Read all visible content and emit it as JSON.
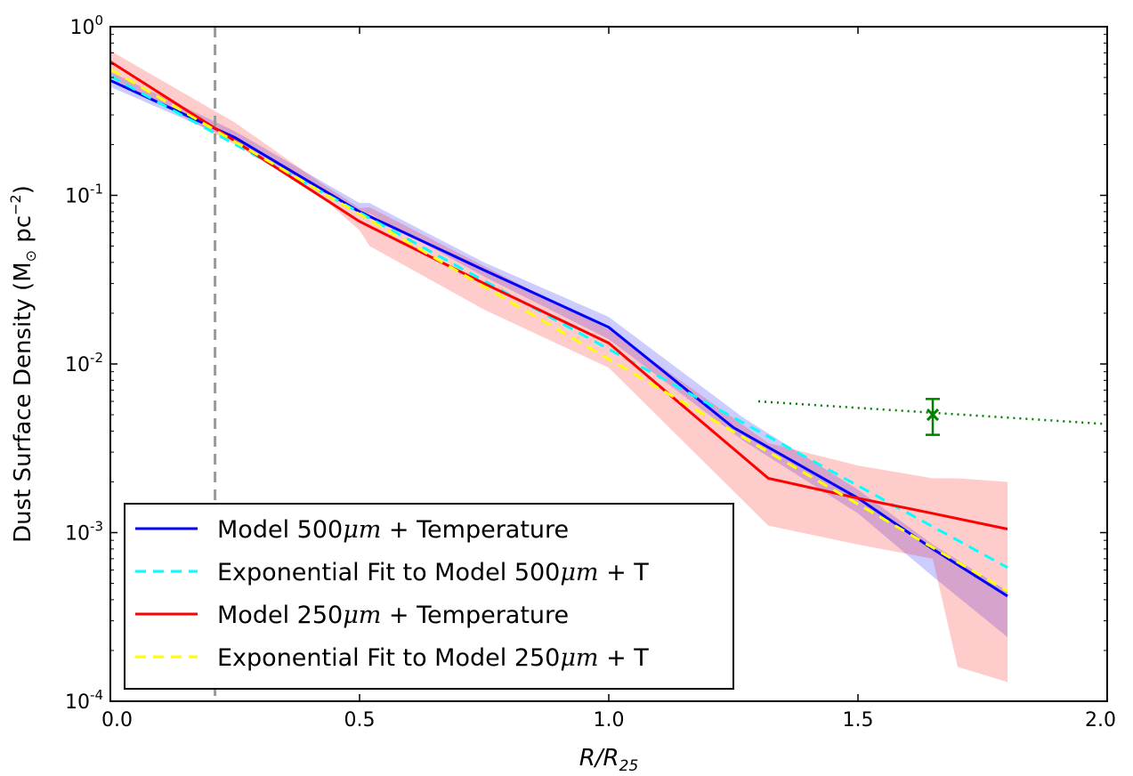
{
  "chart_data": {
    "type": "line",
    "title": "",
    "xlabel": "R/R",
    "xlabel_sub": "25",
    "ylabel": "Dust Surface Density (M",
    "ylabel_sun": "⊙",
    "ylabel_unit": " pc",
    "ylabel_exp": "−2",
    "ylabel_close": ")",
    "xlim": [
      0.0,
      2.0
    ],
    "ylim": [
      0.0001,
      1.0
    ],
    "yscale": "log",
    "grid": false,
    "legend_position": "lower-left",
    "x_ticks": [
      {
        "value": 0.0,
        "label": "0.0"
      },
      {
        "value": 0.5,
        "label": "0.5"
      },
      {
        "value": 1.0,
        "label": "1.0"
      },
      {
        "value": 1.5,
        "label": "1.5"
      },
      {
        "value": 2.0,
        "label": "2.0"
      }
    ],
    "y_ticks": [
      {
        "value": 1.0,
        "base": "10",
        "exp": "0"
      },
      {
        "value": 0.1,
        "base": "10",
        "exp": "-1"
      },
      {
        "value": 0.01,
        "base": "10",
        "exp": "-2"
      },
      {
        "value": 0.001,
        "base": "10",
        "exp": "-3"
      },
      {
        "value": 0.0001,
        "base": "10",
        "exp": "-4"
      }
    ],
    "reference_line": {
      "x": 0.21,
      "color": "#999999",
      "style": "dashed"
    },
    "bands": [
      {
        "series": "Model 500μm + Temperature",
        "color": "#0000ff",
        "opacity": 0.2,
        "x": [
          0.0,
          0.25,
          0.5,
          0.52,
          0.75,
          1.0,
          1.27,
          1.5,
          1.65,
          1.8
        ],
        "upper": [
          0.54,
          0.24,
          0.09,
          0.09,
          0.04,
          0.019,
          0.0048,
          0.0018,
          0.00085,
          0.00045
        ],
        "lower": [
          0.44,
          0.21,
          0.078,
          0.078,
          0.033,
          0.014,
          0.0035,
          0.0013,
          0.00055,
          0.00024
        ]
      },
      {
        "series": "Model 250μm + Temperature",
        "color": "#ff0000",
        "opacity": 0.2,
        "x": [
          0.0,
          0.25,
          0.42,
          0.5,
          0.52,
          0.75,
          1.0,
          1.32,
          1.5,
          1.65,
          1.7,
          1.8
        ],
        "upper": [
          0.72,
          0.27,
          0.12,
          0.084,
          0.085,
          0.038,
          0.016,
          0.0034,
          0.0025,
          0.0021,
          0.0021,
          0.002
        ],
        "lower": [
          0.5,
          0.2,
          0.1,
          0.062,
          0.05,
          0.021,
          0.0095,
          0.0011,
          0.00085,
          0.0007,
          0.00016,
          0.00013
        ]
      }
    ],
    "series": [
      {
        "name": "Model 500μm + Temperature",
        "color": "#0000ff",
        "style": "solid",
        "x": [
          0.0,
          0.25,
          0.5,
          0.75,
          1.0,
          1.25,
          1.5,
          1.65,
          1.8
        ],
        "y": [
          0.48,
          0.22,
          0.08,
          0.036,
          0.0165,
          0.0042,
          0.0016,
          0.0008,
          0.00042
        ]
      },
      {
        "name": "Exponential Fit to Model 500μm + T",
        "color": "#00ffff",
        "style": "dashed",
        "x": [
          0.0,
          1.8
        ],
        "y": [
          0.51,
          0.00062
        ]
      },
      {
        "name": "Model 250μm + Temperature",
        "color": "#ff0000",
        "style": "solid",
        "x": [
          0.0,
          0.25,
          0.5,
          0.75,
          1.0,
          1.32,
          1.5,
          1.65,
          1.8
        ],
        "y": [
          0.62,
          0.21,
          0.07,
          0.03,
          0.0133,
          0.0021,
          0.0016,
          0.0013,
          0.00105
        ]
      },
      {
        "name": "Exponential Fit to Model 250μm + T",
        "color": "#ffff00",
        "style": "dashed",
        "x": [
          0.0,
          1.8
        ],
        "y": [
          0.56,
          0.00045
        ]
      },
      {
        "name": "",
        "color": "#008000",
        "style": "dotted",
        "x": [
          1.3,
          2.0
        ],
        "y": [
          0.006,
          0.0044
        ]
      }
    ],
    "data_point": {
      "x": 1.65,
      "y": 0.005,
      "y_err_low": 0.0038,
      "y_err_high": 0.0062,
      "marker": "x",
      "color": "#008000"
    }
  },
  "legend": {
    "items": [
      {
        "text": "Model 500",
        "unit": "μm",
        "tail": " + Temperature",
        "color": "#0000ff",
        "style": "solid"
      },
      {
        "text": "Exponential Fit to Model 500",
        "unit": "μm",
        "tail": " + T",
        "color": "#00ffff",
        "style": "dashed"
      },
      {
        "text": "Model 250",
        "unit": "μm",
        "tail": " + Temperature",
        "color": "#ff0000",
        "style": "solid"
      },
      {
        "text": "Exponential Fit to Model 250",
        "unit": "μm",
        "tail": " + T",
        "color": "#ffff00",
        "style": "dashed"
      }
    ]
  }
}
